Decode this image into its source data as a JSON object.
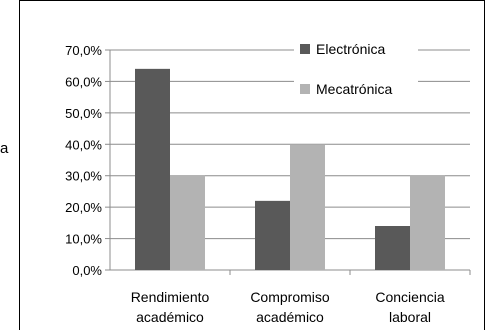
{
  "chart_data": {
    "type": "bar",
    "categories": [
      [
        "Rendimiento",
        "académico"
      ],
      [
        "Compromiso",
        "académico"
      ],
      [
        "Conciencia",
        "laboral"
      ]
    ],
    "series": [
      {
        "name": "Electrónica",
        "values": [
          64.0,
          22.0,
          14.0
        ],
        "color": "#595959"
      },
      {
        "name": "Mecatrónica",
        "values": [
          30.0,
          40.0,
          30.0
        ],
        "color": "#b3b3b3"
      }
    ],
    "y_ticks": [
      "0,0%",
      "10,0%",
      "20,0%",
      "30,0%",
      "40,0%",
      "50,0%",
      "60,0%",
      "70,0%"
    ],
    "ylim": [
      0,
      70
    ],
    "legend_position": "top-right",
    "grid": true
  },
  "stray_text": "a"
}
